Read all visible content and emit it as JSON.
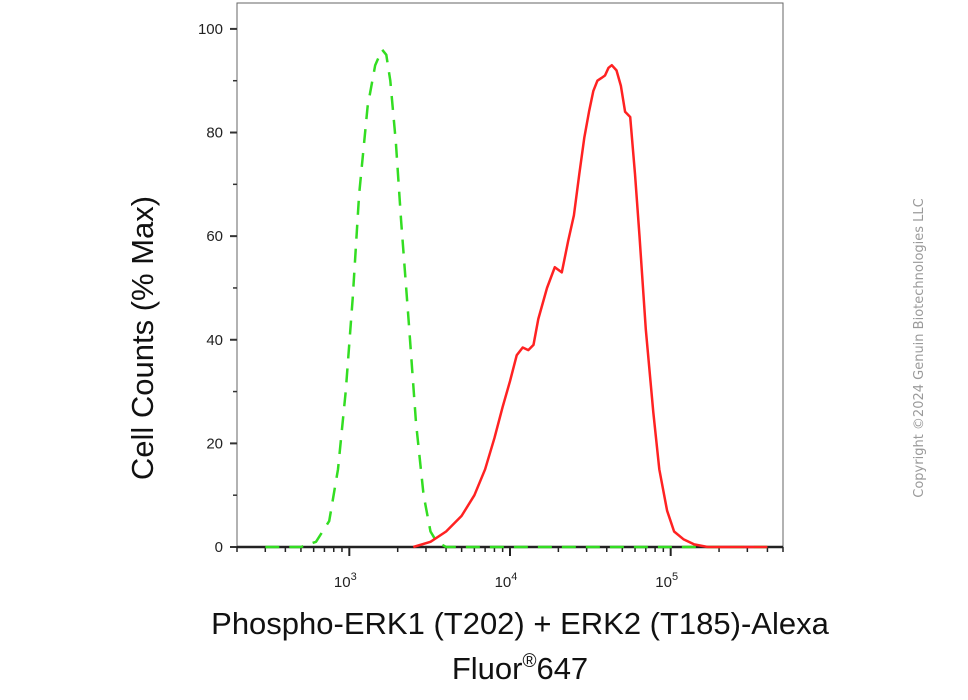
{
  "chart_data": {
    "type": "line",
    "xlabel_lines": [
      {
        "text": "Phospho-ERK1 (T202) + ERK2 (T185)-Alexa"
      },
      {
        "text": "Fluor",
        "sup": "®",
        "tail": "647"
      }
    ],
    "ylabel": "Cell Counts (% Max)",
    "xscale": "log",
    "xlim": [
      200,
      500000
    ],
    "ylim": [
      0,
      105
    ],
    "xticks": [
      {
        "base": "10",
        "exp": "3",
        "value": 1000
      },
      {
        "base": "10",
        "exp": "4",
        "value": 10000
      },
      {
        "base": "10",
        "exp": "5",
        "value": 100000
      }
    ],
    "yticks": [
      0,
      20,
      40,
      60,
      80,
      100
    ],
    "grid": false,
    "legend": "none",
    "series": [
      {
        "color": "#33dd22",
        "style": "dashed",
        "x": [
          300,
          500,
          620,
          750,
          850,
          950,
          1050,
          1150,
          1300,
          1450,
          1600,
          1700,
          1800,
          1950,
          2100,
          2350,
          2600,
          2900,
          3200,
          3500,
          4000,
          5000,
          10000,
          100000,
          400000
        ],
        "y": [
          0,
          0,
          1,
          5,
          15,
          30,
          48,
          68,
          85,
          93,
          96,
          95,
          90,
          78,
          63,
          43,
          24,
          10,
          3,
          1,
          0,
          0,
          0,
          0,
          0
        ]
      },
      {
        "color": "#ff2222",
        "style": "solid",
        "x": [
          2500,
          3200,
          4000,
          5000,
          6000,
          7000,
          8000,
          9000,
          10000,
          11000,
          12000,
          13000,
          14000,
          15000,
          17000,
          19000,
          21000,
          23000,
          25000,
          27000,
          29000,
          31000,
          33000,
          35000,
          37000,
          39000,
          41000,
          43000,
          46000,
          49000,
          52000,
          56000,
          60000,
          64000,
          70000,
          78000,
          85000,
          95000,
          105000,
          120000,
          140000,
          170000,
          220000,
          400000
        ],
        "y": [
          0,
          1,
          3,
          6,
          10,
          15,
          21,
          27,
          32,
          37,
          38.5,
          38,
          39,
          44,
          50,
          54,
          53,
          59,
          64,
          72,
          79,
          84,
          88,
          90,
          90.5,
          91,
          92.5,
          93,
          92,
          89,
          84,
          83,
          72,
          60,
          42,
          26,
          15,
          7,
          3,
          1.5,
          0.5,
          0,
          0,
          0
        ]
      }
    ]
  },
  "watermark": {
    "text": "Copyright ©2024 Genuin Biotechnologies LLC"
  }
}
